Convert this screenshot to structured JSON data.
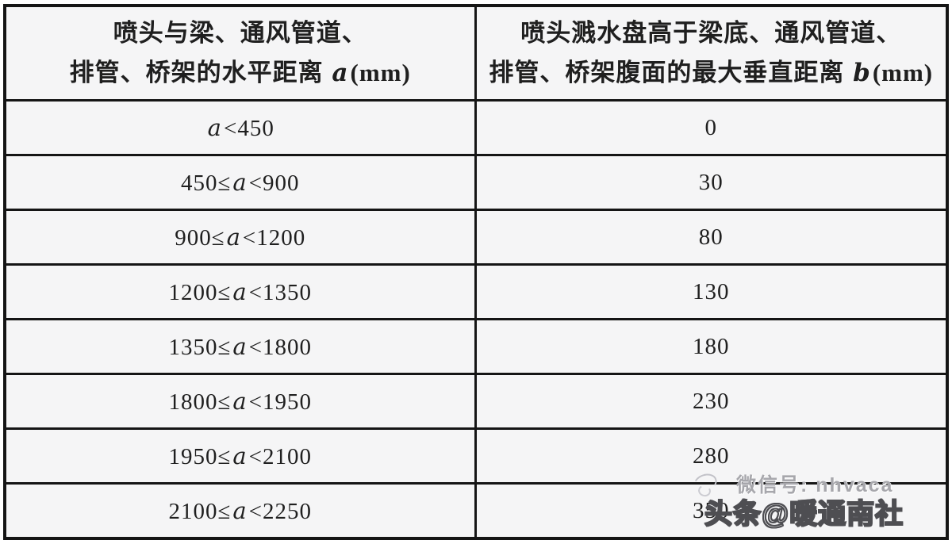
{
  "table": {
    "header": {
      "left": {
        "line1": "喷头与梁、通风管道、",
        "line2_prefix": "排管、桥架的水平距离 ",
        "line2_var": "a",
        "line2_suffix": "(mm)"
      },
      "right": {
        "line1": "喷头溅水盘高于梁底、通风管道、",
        "line2_prefix": "排管、桥架腹面的最大垂直距离 ",
        "line2_var": "b",
        "line2_suffix": "(mm)"
      }
    },
    "rows": [
      {
        "prefix": "",
        "var": "a",
        "suffix": "<450",
        "value": "0"
      },
      {
        "prefix": "450≤",
        "var": "a",
        "suffix": "<900",
        "value": "30"
      },
      {
        "prefix": "900≤",
        "var": "a",
        "suffix": "<1200",
        "value": "80"
      },
      {
        "prefix": "1200≤",
        "var": "a",
        "suffix": "<1350",
        "value": "130"
      },
      {
        "prefix": "1350≤",
        "var": "a",
        "suffix": "<1800",
        "value": "180"
      },
      {
        "prefix": "1800≤",
        "var": "a",
        "suffix": "<1950",
        "value": "230"
      },
      {
        "prefix": "1950≤",
        "var": "a",
        "suffix": "<2100",
        "value": "280"
      },
      {
        "prefix": "2100≤",
        "var": "a",
        "suffix": "<2250",
        "value": "350"
      }
    ]
  },
  "watermark": {
    "line1": "微信号: nhvaca",
    "line2": "头条@暖通南社"
  },
  "colors": {
    "border": "#151515",
    "cell_bg": "#f5f5f6",
    "text": "#1f1f1f",
    "watermark_light": "#a7a7ac",
    "watermark_outline": "#4e4e52"
  }
}
